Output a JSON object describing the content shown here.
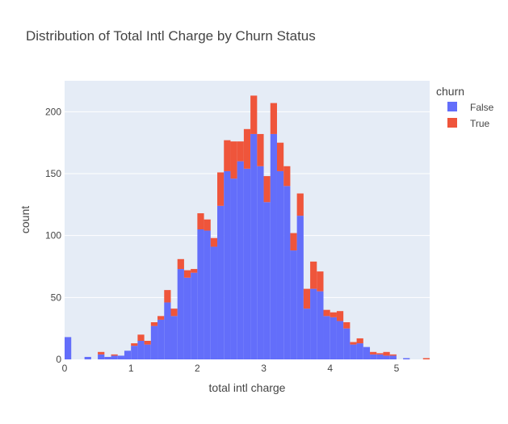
{
  "chart_data": {
    "type": "bar",
    "barmode": "stack",
    "title": "Distribution of Total Intl Charge by Churn Status",
    "xlabel": "total intl charge",
    "ylabel": "count",
    "xlim": [
      0,
      5.5
    ],
    "ylim": [
      0,
      225
    ],
    "xticks": [
      0,
      1,
      2,
      3,
      4,
      5
    ],
    "yticks": [
      0,
      50,
      100,
      150,
      200
    ],
    "grid": true,
    "plot_background": "#e5ecf6",
    "bin_width": 0.1,
    "legend": {
      "title": "churn",
      "placement": "top-right"
    },
    "x": [
      0.0,
      0.3,
      0.5,
      0.6,
      0.7,
      0.8,
      0.9,
      1.0,
      1.1,
      1.2,
      1.3,
      1.4,
      1.5,
      1.6,
      1.7,
      1.8,
      1.9,
      2.0,
      2.1,
      2.2,
      2.3,
      2.4,
      2.5,
      2.6,
      2.7,
      2.8,
      2.9,
      3.0,
      3.1,
      3.2,
      3.3,
      3.4,
      3.5,
      3.6,
      3.7,
      3.8,
      3.9,
      4.0,
      4.1,
      4.2,
      4.3,
      4.4,
      4.5,
      4.6,
      4.7,
      4.8,
      4.9,
      5.1,
      5.4
    ],
    "series": [
      {
        "name": "False",
        "color": "#636efa",
        "values": [
          18,
          2,
          4,
          2,
          3,
          3,
          7,
          11,
          15,
          12,
          27,
          32,
          46,
          35,
          73,
          66,
          70,
          105,
          104,
          91,
          124,
          152,
          146,
          160,
          154,
          182,
          156,
          127,
          182,
          152,
          140,
          88,
          116,
          41,
          57,
          55,
          35,
          34,
          31,
          25,
          12,
          13,
          10,
          4,
          4,
          3,
          3,
          1,
          0
        ]
      },
      {
        "name": "True",
        "color": "#ef553b",
        "values": [
          0,
          0,
          2,
          0,
          1,
          0,
          0,
          2,
          5,
          3,
          3,
          3,
          10,
          6,
          8,
          6,
          3,
          13,
          9,
          7,
          27,
          25,
          30,
          16,
          32,
          31,
          26,
          21,
          25,
          23,
          16,
          14,
          18,
          16,
          22,
          16,
          5,
          4,
          8,
          5,
          2,
          4,
          0,
          2,
          1,
          3,
          1,
          0,
          1
        ]
      }
    ]
  }
}
